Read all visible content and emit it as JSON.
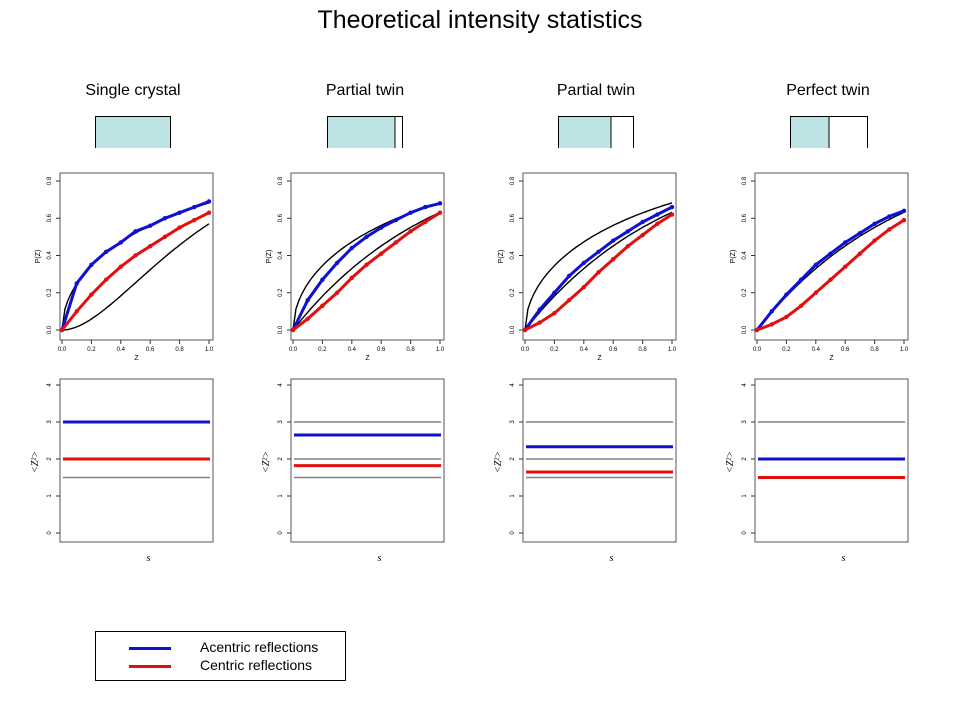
{
  "title": "Theoretical intensity statistics",
  "colors": {
    "acentric": "#1010d0",
    "centric": "#e01010",
    "reference": "#000000",
    "reference_grey": "#808080",
    "box_fill": "#bde3e4"
  },
  "legend": [
    {
      "label": "Acentric reflections",
      "color": "#1010d0"
    },
    {
      "label": "Centric reflections",
      "color": "#e01010"
    }
  ],
  "chart_data": [
    {
      "type": "line",
      "title": "Single crystal",
      "twin_fraction": 0.0,
      "xlabel": "Z",
      "ylabel": "P(Z)",
      "xlim": [
        0,
        1
      ],
      "ylim": [
        0,
        0.8
      ],
      "xticks": [
        "0.0",
        "0.2",
        "0.4",
        "0.6",
        "0.8",
        "1.0"
      ],
      "yticks": [
        "0.0",
        "0.2",
        "0.4",
        "0.6",
        "0.8"
      ],
      "x": [
        0,
        0.1,
        0.2,
        0.3,
        0.4,
        0.5,
        0.6,
        0.7,
        0.8,
        0.9,
        1.0
      ],
      "series": [
        {
          "role": "acentric",
          "values": [
            0,
            0.25,
            0.35,
            0.42,
            0.47,
            0.53,
            0.56,
            0.6,
            0.63,
            0.66,
            0.69
          ]
        },
        {
          "role": "centric",
          "values": [
            0,
            0.1,
            0.19,
            0.27,
            0.34,
            0.4,
            0.45,
            0.5,
            0.55,
            0.59,
            0.63
          ]
        }
      ]
    },
    {
      "type": "line",
      "title": "Partial twin",
      "twin_fraction": 0.1,
      "xlabel": "Z",
      "ylabel": "P(Z)",
      "xlim": [
        0,
        1
      ],
      "ylim": [
        0,
        0.8
      ],
      "xticks": [
        "0.0",
        "0.2",
        "0.4",
        "0.6",
        "0.8",
        "1.0"
      ],
      "yticks": [
        "0.0",
        "0.2",
        "0.4",
        "0.6",
        "0.8"
      ],
      "x": [
        0,
        0.1,
        0.2,
        0.3,
        0.4,
        0.5,
        0.6,
        0.7,
        0.8,
        0.9,
        1.0
      ],
      "series": [
        {
          "role": "acentric",
          "values": [
            0,
            0.16,
            0.27,
            0.36,
            0.44,
            0.5,
            0.55,
            0.59,
            0.63,
            0.66,
            0.68
          ]
        },
        {
          "role": "centric",
          "values": [
            0,
            0.06,
            0.13,
            0.2,
            0.28,
            0.35,
            0.41,
            0.47,
            0.53,
            0.58,
            0.63
          ]
        }
      ]
    },
    {
      "type": "line",
      "title": "Partial twin",
      "twin_fraction": 0.3,
      "xlabel": "Z",
      "ylabel": "P(Z)",
      "xlim": [
        0,
        1
      ],
      "ylim": [
        0,
        0.8
      ],
      "xticks": [
        "0.0",
        "0.2",
        "0.4",
        "0.6",
        "0.8",
        "1.0"
      ],
      "yticks": [
        "0.0",
        "0.2",
        "0.4",
        "0.6",
        "0.8"
      ],
      "x": [
        0,
        0.1,
        0.2,
        0.3,
        0.4,
        0.5,
        0.6,
        0.7,
        0.8,
        0.9,
        1.0
      ],
      "series": [
        {
          "role": "acentric",
          "values": [
            0,
            0.11,
            0.2,
            0.29,
            0.36,
            0.42,
            0.48,
            0.53,
            0.58,
            0.62,
            0.66
          ]
        },
        {
          "role": "centric",
          "values": [
            0,
            0.04,
            0.09,
            0.16,
            0.23,
            0.31,
            0.38,
            0.45,
            0.51,
            0.57,
            0.62
          ]
        }
      ]
    },
    {
      "type": "line",
      "title": "Perfect twin",
      "twin_fraction": 0.5,
      "xlabel": "Z",
      "ylabel": "P(Z)",
      "xlim": [
        0,
        1
      ],
      "ylim": [
        0,
        0.8
      ],
      "xticks": [
        "0.0",
        "0.2",
        "0.4",
        "0.6",
        "0.8",
        "1.0"
      ],
      "yticks": [
        "0.0",
        "0.2",
        "0.4",
        "0.6",
        "0.8"
      ],
      "x": [
        0,
        0.1,
        0.2,
        0.3,
        0.4,
        0.5,
        0.6,
        0.7,
        0.8,
        0.9,
        1.0
      ],
      "series": [
        {
          "role": "acentric",
          "values": [
            0,
            0.1,
            0.19,
            0.27,
            0.35,
            0.41,
            0.47,
            0.52,
            0.57,
            0.61,
            0.64
          ]
        },
        {
          "role": "centric",
          "values": [
            0,
            0.03,
            0.07,
            0.13,
            0.2,
            0.27,
            0.34,
            0.41,
            0.48,
            0.54,
            0.59
          ]
        }
      ]
    },
    {
      "type": "line",
      "title": "Single crystal",
      "xlabel": "s",
      "ylabel": "<Z²>",
      "ylim": [
        0,
        4
      ],
      "yticks": [
        "0",
        "1",
        "2",
        "3",
        "4"
      ],
      "reference_levels": [
        3,
        2,
        1.5
      ],
      "series": [
        {
          "role": "acentric",
          "value": 3.0
        },
        {
          "role": "centric",
          "value": 2.0
        }
      ]
    },
    {
      "type": "line",
      "title": "Partial twin",
      "xlabel": "s",
      "ylabel": "<Z²>",
      "ylim": [
        0,
        4
      ],
      "yticks": [
        "0",
        "1",
        "2",
        "3",
        "4"
      ],
      "reference_levels": [
        3,
        2,
        1.5
      ],
      "series": [
        {
          "role": "acentric",
          "value": 2.65
        },
        {
          "role": "centric",
          "value": 1.82
        }
      ]
    },
    {
      "type": "line",
      "title": "Partial twin",
      "xlabel": "s",
      "ylabel": "<Z²>",
      "ylim": [
        0,
        4
      ],
      "yticks": [
        "0",
        "1",
        "2",
        "3",
        "4"
      ],
      "reference_levels": [
        3,
        2,
        1.5
      ],
      "series": [
        {
          "role": "acentric",
          "value": 2.33
        },
        {
          "role": "centric",
          "value": 1.65
        }
      ]
    },
    {
      "type": "line",
      "title": "Perfect twin",
      "xlabel": "s",
      "ylabel": "<Z²>",
      "ylim": [
        0,
        4
      ],
      "yticks": [
        "0",
        "1",
        "2",
        "3",
        "4"
      ],
      "reference_levels": [
        3,
        2,
        1.5
      ],
      "series": [
        {
          "role": "acentric",
          "value": 2.0
        },
        {
          "role": "centric",
          "value": 1.5
        }
      ]
    }
  ]
}
